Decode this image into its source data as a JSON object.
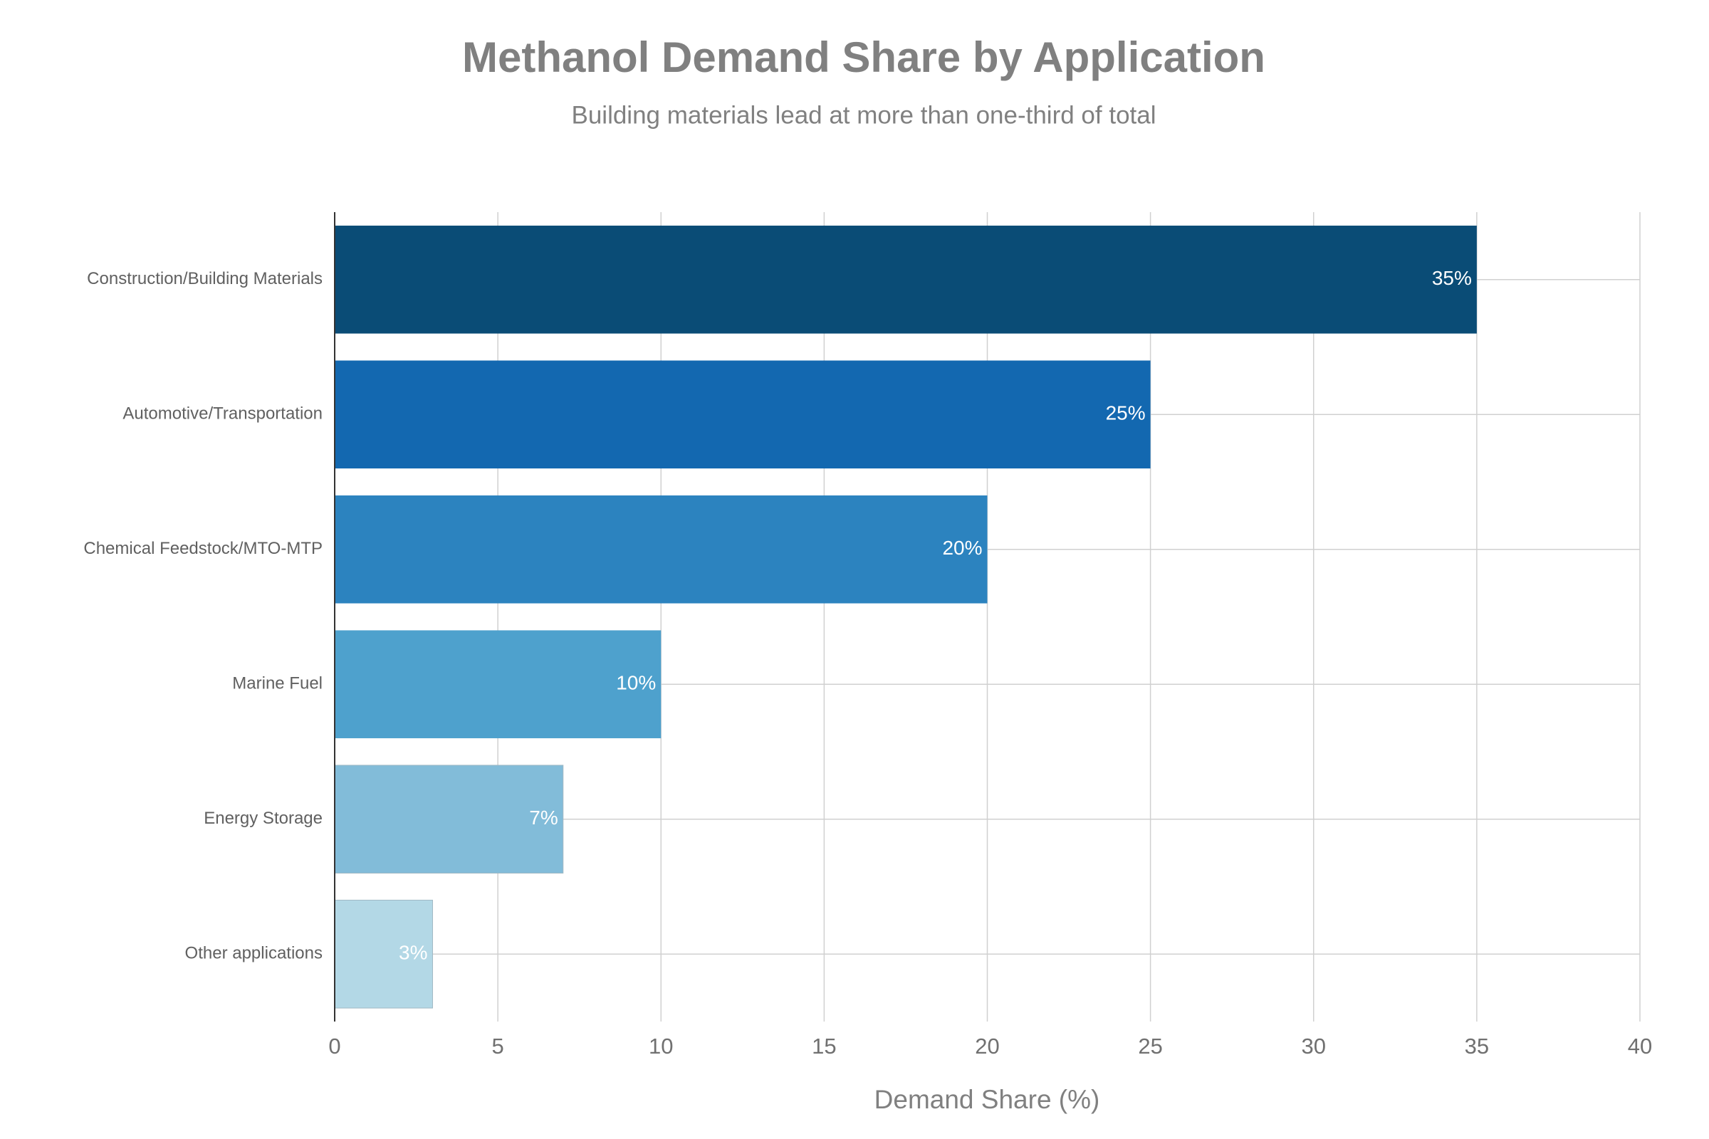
{
  "chart_data": {
    "type": "barh",
    "title": "Methanol Demand Share by Application",
    "subtitle": "Building materials lead at more than one-third of total",
    "x_label": "Demand Share (%)",
    "categories": [
      "Construction/Building Materials",
      "Automotive/Transportation",
      "Chemical Feedstock/MTO-MTP",
      "Marine Fuel",
      "Energy Storage",
      "Other applications"
    ],
    "values": [
      35,
      25,
      20,
      10,
      7,
      3
    ],
    "value_labels": [
      "35%",
      "25%",
      "20%",
      "10%",
      "7%",
      "3%"
    ],
    "colors": [
      "#0a4c76",
      "#1368b0",
      "#2c83bf",
      "#4ea1cd",
      "#82bcd9",
      "#b3d8e6"
    ],
    "xlim": [
      0,
      40
    ],
    "xticks": [
      0,
      5,
      10,
      15,
      20,
      25,
      30,
      35,
      40
    ],
    "grid": true
  }
}
